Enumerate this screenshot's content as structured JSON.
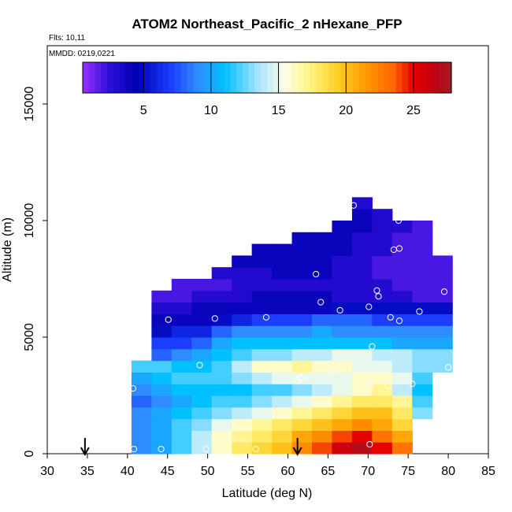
{
  "chart_data": {
    "type": "heatmap",
    "title": "ATOM2 Northeast_Pacific_2 nHexane_PFP",
    "info_lines": [
      "Flts: 10,11",
      "MMDD: 0219,0221"
    ],
    "xlabel": "Latitude (deg N)",
    "ylabel": "Altitude (m)",
    "xlim": [
      30,
      85
    ],
    "ylim": [
      0,
      17500
    ],
    "x_ticks": [
      "30",
      "35",
      "40",
      "45",
      "50",
      "55",
      "60",
      "65",
      "70",
      "75",
      "80",
      "85"
    ],
    "y_ticks": [
      "0",
      "5000",
      "10000",
      "15000"
    ],
    "colorbar": {
      "range": [
        0.5,
        27.8
      ],
      "ticks": [
        "5",
        "10",
        "15",
        "20",
        "25"
      ],
      "stops": [
        {
          "v": 0.5,
          "c": "#9b30ff"
        },
        {
          "v": 2.5,
          "c": "#2d0fd8"
        },
        {
          "v": 4.5,
          "c": "#0000b4"
        },
        {
          "v": 7.0,
          "c": "#1a3dff"
        },
        {
          "v": 9.0,
          "c": "#2f8cff"
        },
        {
          "v": 11.0,
          "c": "#00c0ff"
        },
        {
          "v": 13.5,
          "c": "#a8e4ff"
        },
        {
          "v": 15.5,
          "c": "#ffffe6"
        },
        {
          "v": 17.5,
          "c": "#fff27a"
        },
        {
          "v": 19.5,
          "c": "#ffcc22"
        },
        {
          "v": 21.5,
          "c": "#ff9900"
        },
        {
          "v": 23.5,
          "c": "#ff6600"
        },
        {
          "v": 25.0,
          "c": "#e60000"
        },
        {
          "v": 26.5,
          "c": "#c00010"
        },
        {
          "v": 27.8,
          "c": "#9e1e26"
        }
      ]
    },
    "grid": {
      "lat_bins": [
        40.5,
        43,
        45.5,
        48,
        50.5,
        53,
        55.5,
        58,
        60.5,
        63,
        65.5,
        68,
        70.5,
        73,
        75.5,
        78,
        80.5
      ],
      "alt_bins": [
        0,
        500,
        1000,
        1500,
        2000,
        2500,
        3000,
        3500,
        4000,
        4500,
        5000,
        5500,
        6000,
        6500,
        7000,
        7500,
        8000,
        8500,
        9000,
        9500,
        10000,
        10500,
        11000
      ],
      "values": [
        [
          9,
          10,
          12,
          14,
          16,
          18,
          19,
          20,
          22,
          24,
          26,
          27,
          25,
          23,
          null,
          null
        ],
        [
          9,
          10,
          12,
          14,
          16,
          17,
          18,
          19,
          21,
          22,
          24,
          25,
          23,
          21,
          null,
          null
        ],
        [
          9,
          10,
          12,
          13,
          15,
          16,
          17,
          18,
          19,
          20,
          21,
          22,
          21,
          19,
          null,
          null
        ],
        [
          9,
          10,
          11,
          12,
          13,
          14,
          15,
          16,
          17,
          18,
          19,
          20,
          20,
          18,
          13,
          null
        ],
        [
          8,
          9,
          10,
          11,
          12,
          12,
          13,
          14,
          15,
          16,
          17,
          18,
          18,
          17,
          12,
          null
        ],
        [
          9,
          10,
          11,
          11,
          11,
          11,
          12,
          12,
          13,
          14,
          15,
          16,
          17,
          14,
          11,
          null
        ],
        [
          10,
          11,
          12,
          12,
          12,
          13,
          14,
          15,
          15,
          15,
          15,
          16,
          16,
          15,
          12,
          null
        ],
        [
          12,
          12,
          11,
          11,
          12,
          14,
          16,
          16,
          17,
          16,
          16,
          15,
          15,
          14,
          13,
          13
        ],
        [
          null,
          8,
          9,
          10,
          11,
          12,
          13,
          13,
          14,
          14,
          15,
          15,
          14,
          14,
          13,
          13
        ],
        [
          null,
          7,
          7,
          8,
          10,
          11,
          11,
          11,
          11,
          11,
          11,
          11,
          11,
          10,
          10,
          10
        ],
        [
          null,
          5,
          6,
          6,
          8,
          9,
          9,
          9,
          9,
          10,
          9,
          9,
          9,
          9,
          9,
          9
        ],
        [
          null,
          4,
          4,
          4,
          5,
          6,
          7,
          7,
          7,
          8,
          8,
          8,
          7,
          7,
          7,
          7
        ],
        [
          null,
          3,
          3,
          4,
          4,
          4,
          4,
          4,
          4,
          4,
          5,
          5,
          5,
          5,
          5,
          5
        ],
        [
          null,
          2,
          2,
          3,
          3,
          3,
          4,
          4,
          4,
          4,
          3,
          3,
          3,
          3,
          2,
          2
        ],
        [
          null,
          null,
          2,
          2,
          2,
          3,
          3,
          3,
          3,
          3,
          3,
          3,
          3,
          2,
          2,
          2
        ],
        [
          null,
          null,
          null,
          null,
          3,
          3,
          3,
          4,
          4,
          4,
          3,
          3,
          2,
          2,
          2,
          2
        ],
        [
          null,
          null,
          null,
          null,
          null,
          4,
          4,
          4,
          4,
          4,
          3,
          3,
          2,
          2,
          2,
          2
        ],
        [
          null,
          null,
          null,
          null,
          null,
          null,
          4,
          4,
          4,
          4,
          4,
          3,
          3,
          2,
          2,
          null
        ],
        [
          null,
          null,
          null,
          null,
          null,
          null,
          null,
          null,
          4,
          4,
          4,
          3,
          3,
          2,
          2,
          null
        ],
        [
          null,
          null,
          null,
          null,
          null,
          null,
          null,
          null,
          null,
          null,
          4,
          4,
          3,
          3,
          2,
          null
        ],
        [
          null,
          null,
          null,
          null,
          null,
          null,
          null,
          null,
          null,
          null,
          null,
          4,
          3,
          null,
          null,
          null
        ],
        [
          null,
          null,
          null,
          null,
          null,
          null,
          null,
          null,
          null,
          null,
          null,
          3,
          null,
          null,
          null,
          null
        ]
      ]
    },
    "sample_points": [
      [
        40.8,
        200
      ],
      [
        44.2,
        200
      ],
      [
        49.8,
        200
      ],
      [
        56,
        200
      ],
      [
        70.2,
        400
      ],
      [
        40.7,
        2800
      ],
      [
        49,
        3800
      ],
      [
        61.2,
        3150
      ],
      [
        61.6,
        3250
      ],
      [
        65.5,
        3500
      ],
      [
        70.2,
        3000
      ],
      [
        72.5,
        2900
      ],
      [
        75.5,
        3000
      ],
      [
        80,
        3700
      ],
      [
        70.5,
        4600
      ],
      [
        45.1,
        5750
      ],
      [
        50.9,
        5800
      ],
      [
        57.3,
        5850
      ],
      [
        64.1,
        6500
      ],
      [
        66.5,
        6150
      ],
      [
        70.1,
        6300
      ],
      [
        72.8,
        5850
      ],
      [
        73.9,
        5700
      ],
      [
        76.4,
        6100
      ],
      [
        42.6,
        6650
      ],
      [
        63.5,
        7700
      ],
      [
        71.1,
        7000
      ],
      [
        71.3,
        6750
      ],
      [
        79.5,
        6950
      ],
      [
        73.2,
        8750
      ],
      [
        73.9,
        8800
      ],
      [
        78.5,
        9600
      ],
      [
        73.8,
        10000
      ],
      [
        68.2,
        10650
      ]
    ],
    "markers": [
      {
        "lat": 34.7
      },
      {
        "lat": 61.2
      }
    ]
  }
}
